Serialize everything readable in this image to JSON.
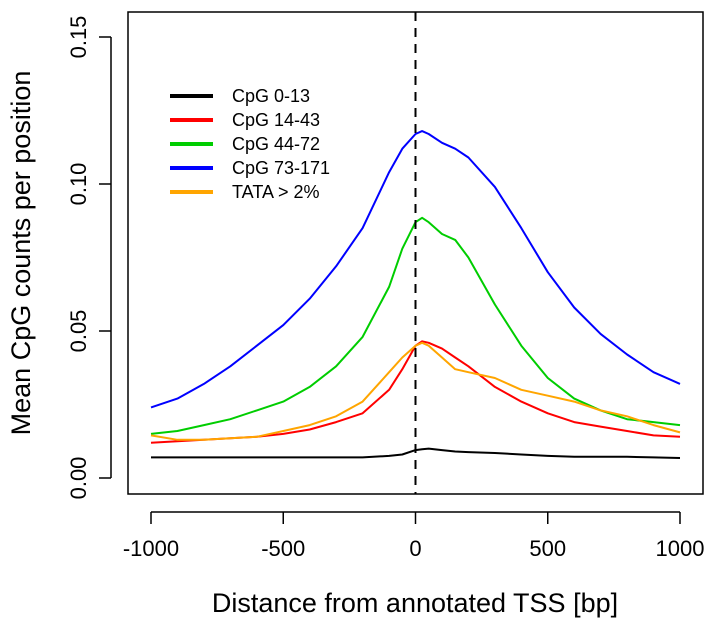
{
  "chart_data": {
    "type": "line",
    "title": "",
    "xlabel": "Distance from annotated TSS [bp]",
    "ylabel": "Mean CpG counts per position",
    "xlim": [
      -1000,
      1000
    ],
    "ylim": [
      0,
      0.15
    ],
    "x_ticks": [
      -1000,
      -500,
      0,
      500,
      1000
    ],
    "x_tick_labels": [
      "-1000",
      "-500",
      "0",
      "500",
      "1000"
    ],
    "y_ticks": [
      0,
      0.05,
      0.1,
      0.15
    ],
    "y_tick_labels": [
      "0.00",
      "0.05",
      "0.10",
      "0.15"
    ],
    "vertical_reference_line": 0,
    "legend_position": "top-left",
    "grid": false,
    "x": [
      -1000,
      -900,
      -800,
      -700,
      -600,
      -500,
      -400,
      -300,
      -200,
      -100,
      -50,
      0,
      25,
      50,
      100,
      150,
      200,
      300,
      400,
      500,
      600,
      700,
      800,
      900,
      1000
    ],
    "series": [
      {
        "name": "CpG 0-13",
        "color": "#000000",
        "values": [
          0.007,
          0.007,
          0.007,
          0.007,
          0.007,
          0.007,
          0.007,
          0.007,
          0.007,
          0.0075,
          0.008,
          0.0095,
          0.0098,
          0.01,
          0.0095,
          0.009,
          0.0088,
          0.0085,
          0.008,
          0.0075,
          0.0072,
          0.0072,
          0.0072,
          0.007,
          0.0068
        ]
      },
      {
        "name": "CpG 14-43",
        "color": "#ff0000",
        "values": [
          0.012,
          0.0125,
          0.013,
          0.0135,
          0.014,
          0.015,
          0.0165,
          0.019,
          0.022,
          0.03,
          0.037,
          0.045,
          0.0465,
          0.046,
          0.044,
          0.041,
          0.038,
          0.031,
          0.026,
          0.022,
          0.019,
          0.0175,
          0.016,
          0.0145,
          0.014
        ]
      },
      {
        "name": "CpG 44-72",
        "color": "#00cd00",
        "values": [
          0.015,
          0.016,
          0.018,
          0.02,
          0.023,
          0.026,
          0.031,
          0.038,
          0.048,
          0.065,
          0.078,
          0.087,
          0.0885,
          0.087,
          0.083,
          0.081,
          0.075,
          0.059,
          0.045,
          0.034,
          0.027,
          0.023,
          0.02,
          0.019,
          0.018
        ]
      },
      {
        "name": "CpG 73-171",
        "color": "#0000ff",
        "values": [
          0.024,
          0.027,
          0.032,
          0.038,
          0.045,
          0.052,
          0.061,
          0.072,
          0.085,
          0.104,
          0.112,
          0.117,
          0.118,
          0.117,
          0.114,
          0.112,
          0.109,
          0.099,
          0.085,
          0.07,
          0.058,
          0.049,
          0.042,
          0.036,
          0.032
        ]
      },
      {
        "name": "TATA > 2%",
        "color": "#ffa500",
        "values": [
          0.0145,
          0.013,
          0.013,
          0.0135,
          0.014,
          0.016,
          0.018,
          0.021,
          0.026,
          0.036,
          0.041,
          0.045,
          0.046,
          0.045,
          0.041,
          0.037,
          0.036,
          0.034,
          0.03,
          0.028,
          0.026,
          0.023,
          0.021,
          0.018,
          0.0155
        ]
      }
    ]
  }
}
